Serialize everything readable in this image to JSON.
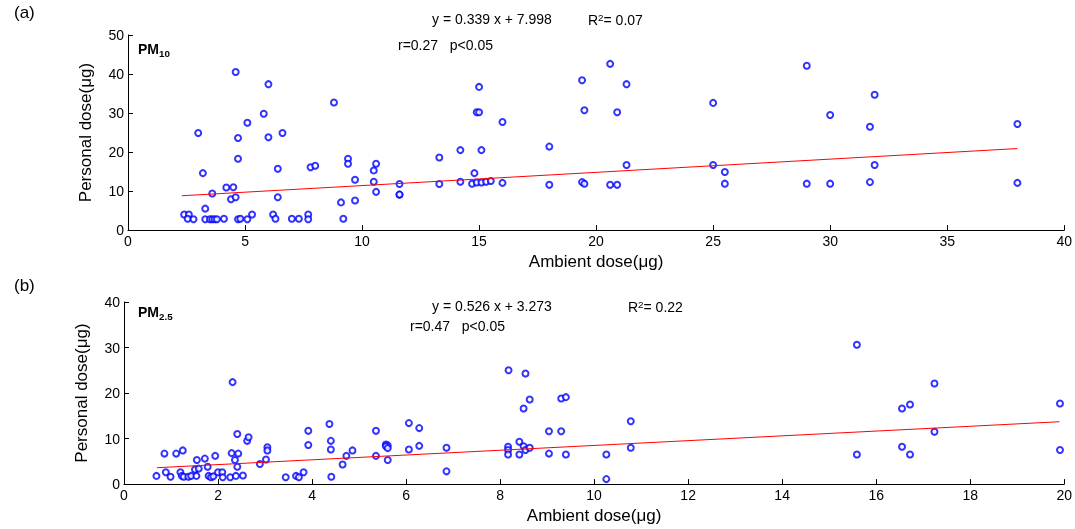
{
  "chart_data": [
    {
      "type": "scatter",
      "title": "(a)",
      "xlabel": "Ambient dose(μg)",
      "ylabel": "Personal dose(μg)",
      "annotations": [
        "PM$_{10}$",
        "y = 0.339 x + 7.998",
        "R$^{2}$= 0.07",
        "r=0.27   p<0.05"
      ],
      "xlim": [
        0,
        40
      ],
      "xticks": [
        0,
        5,
        10,
        15,
        20,
        25,
        30,
        35,
        40
      ],
      "ylim": [
        0,
        50
      ],
      "yticks": [
        0,
        10,
        20,
        30,
        40,
        50
      ],
      "marker": "circle",
      "series": [
        {
          "color": "#0000ff",
          "x": [
            2.4,
            2.6,
            2.55,
            2.8,
            3.0,
            3.2,
            3.3,
            3.3,
            3.6,
            3.5,
            3.6,
            3.7,
            3.8,
            4.1,
            4.2,
            4.4,
            4.5,
            4.6,
            4.6,
            4.7,
            4.7,
            4.7,
            4.8,
            5.1,
            5.1,
            5.3,
            5.8,
            6.0,
            6.0,
            6.2,
            6.4,
            6.4,
            6.3,
            6.6,
            7.0,
            7.3,
            7.7,
            7.7,
            7.8,
            8.0,
            8.8,
            9.1,
            9.2,
            9.4,
            9.4,
            9.7,
            9.7,
            10.5,
            10.6,
            10.5,
            10.6,
            11.6,
            11.6,
            11.6,
            13.3,
            13.3,
            14.2,
            14.2,
            14.8,
            14.7,
            14.9,
            15.0,
            15.1,
            14.9,
            15.1,
            15.3,
            15.5,
            15.0,
            16.0,
            16.0,
            18.0,
            18.0,
            19.4,
            19.4,
            19.5,
            19.5,
            20.6,
            20.6,
            20.9,
            20.9,
            21.3,
            21.3,
            25.0,
            25.0,
            25.5,
            25.5,
            29.0,
            29.0,
            30.0,
            30.0,
            31.7,
            31.7,
            31.9,
            31.9,
            38.0,
            38.0
          ],
          "values": [
            4.0,
            4.0,
            2.9,
            2.8,
            24.9,
            14.6,
            5.5,
            2.8,
            9.4,
            2.8,
            2.8,
            2.8,
            2.8,
            2.9,
            10.9,
            7.9,
            11.0,
            40.5,
            8.4,
            23.6,
            18.3,
            2.8,
            2.9,
            27.5,
            2.8,
            4.0,
            29.8,
            37.4,
            23.8,
            4.0,
            15.7,
            8.4,
            2.9,
            24.9,
            2.9,
            2.9,
            4.0,
            2.8,
            16.1,
            16.5,
            32.7,
            7.1,
            2.9,
            18.3,
            17.0,
            12.9,
            7.6,
            15.3,
            17.0,
            12.4,
            9.8,
            11.8,
            9.1,
            9.1,
            18.6,
            11.8,
            20.5,
            12.4,
            14.6,
            11.9,
            30.2,
            36.7,
            20.5,
            12.2,
            12.2,
            12.4,
            12.6,
            30.2,
            27.7,
            12.1,
            21.4,
            11.6,
            38.4,
            12.3,
            30.7,
            11.9,
            42.6,
            11.6,
            30.2,
            11.6,
            37.4,
            16.7,
            32.6,
            16.7,
            14.9,
            11.9,
            42.1,
            11.9,
            29.5,
            11.9,
            26.5,
            12.3,
            34.7,
            16.7,
            27.2,
            12.1
          ]
        },
        {
          "type": "line",
          "marker": "none",
          "color": "#ff0000",
          "x": [
            2.3,
            38
          ],
          "values": [
            8.8,
            20.9
          ]
        }
      ]
    },
    {
      "type": "scatter",
      "title": "(b)",
      "xlabel": "Ambient dose(μg)",
      "ylabel": "Personal dose(μg)",
      "annotations": [
        "PM$_{2.5}$",
        "y = 0.526 x + 3.273",
        "R$^{2}$= 0.22",
        "r=0.47   p<0.05"
      ],
      "xlim": [
        0,
        20
      ],
      "xticks": [
        0,
        2,
        4,
        6,
        8,
        10,
        12,
        14,
        16,
        18,
        20
      ],
      "ylim": [
        0,
        40
      ],
      "yticks": [
        0,
        10,
        20,
        30,
        40
      ],
      "marker": "circle",
      "series": [
        {
          "color": "#0000ff",
          "x": [
            0.69,
            0.86,
            0.89,
            0.99,
            1.11,
            1.25,
            1.2,
            1.23,
            1.27,
            1.37,
            1.43,
            1.51,
            1.55,
            1.59,
            1.54,
            1.72,
            1.78,
            1.8,
            1.85,
            1.9,
            1.94,
            2.0,
            2.09,
            2.1,
            2.26,
            2.29,
            2.31,
            2.36,
            2.38,
            2.41,
            2.43,
            2.41,
            2.53,
            2.62,
            2.65,
            2.89,
            3.02,
            3.05,
            3.05,
            3.44,
            3.66,
            3.72,
            3.82,
            3.92,
            3.92,
            4.37,
            4.4,
            4.4,
            4.41,
            4.65,
            4.73,
            4.86,
            5.36,
            5.36,
            5.57,
            5.61,
            5.57,
            5.61,
            5.61,
            6.06,
            6.06,
            6.28,
            6.28,
            6.86,
            6.86,
            8.18,
            8.54,
            8.63,
            8.5,
            9.3,
            9.4,
            9.04,
            9.3,
            10.78,
            10.78,
            10.26,
            10.26,
            8.17,
            8.17,
            8.17,
            8.41,
            8.41,
            8.5,
            8.54,
            8.63,
            9.04,
            9.4,
            15.59,
            15.59,
            16.55,
            16.55,
            16.72,
            16.72,
            17.24,
            17.24,
            19.91,
            19.91
          ],
          "values": [
            1.8,
            6.7,
            2.6,
            1.6,
            6.7,
            7.4,
            2.6,
            1.8,
            1.6,
            1.6,
            1.8,
            3.2,
            5.3,
            3.4,
            1.8,
            5.6,
            3.8,
            1.8,
            1.5,
            1.7,
            6.2,
            2.6,
            2.6,
            1.5,
            1.5,
            6.8,
            22.4,
            5.3,
            1.8,
            3.8,
            6.7,
            11.0,
            1.9,
            9.5,
            10.3,
            4.4,
            5.4,
            8.1,
            7.4,
            1.5,
            1.8,
            1.5,
            2.6,
            11.7,
            8.6,
            13.2,
            9.5,
            7.6,
            1.6,
            4.3,
            6.2,
            7.4,
            11.7,
            6.2,
            8.7,
            8.5,
            8.3,
            7.9,
            5.3,
            13.4,
            7.6,
            12.3,
            8.4,
            8.0,
            2.8,
            25.0,
            24.3,
            18.6,
            16.6,
            18.8,
            19.1,
            11.6,
            11.6,
            13.8,
            8.0,
            6.5,
            1.1,
            8.2,
            7.5,
            6.5,
            9.3,
            6.5,
            8.3,
            7.5,
            8.0,
            6.7,
            6.5,
            30.6,
            6.5,
            16.6,
            8.2,
            17.5,
            6.5,
            22.1,
            11.5,
            17.7,
            7.5
          ]
        },
        {
          "type": "line",
          "marker": "none",
          "color": "#ff0000",
          "x": [
            0.7,
            19.9
          ],
          "values": [
            3.6,
            13.7
          ]
        }
      ]
    }
  ]
}
